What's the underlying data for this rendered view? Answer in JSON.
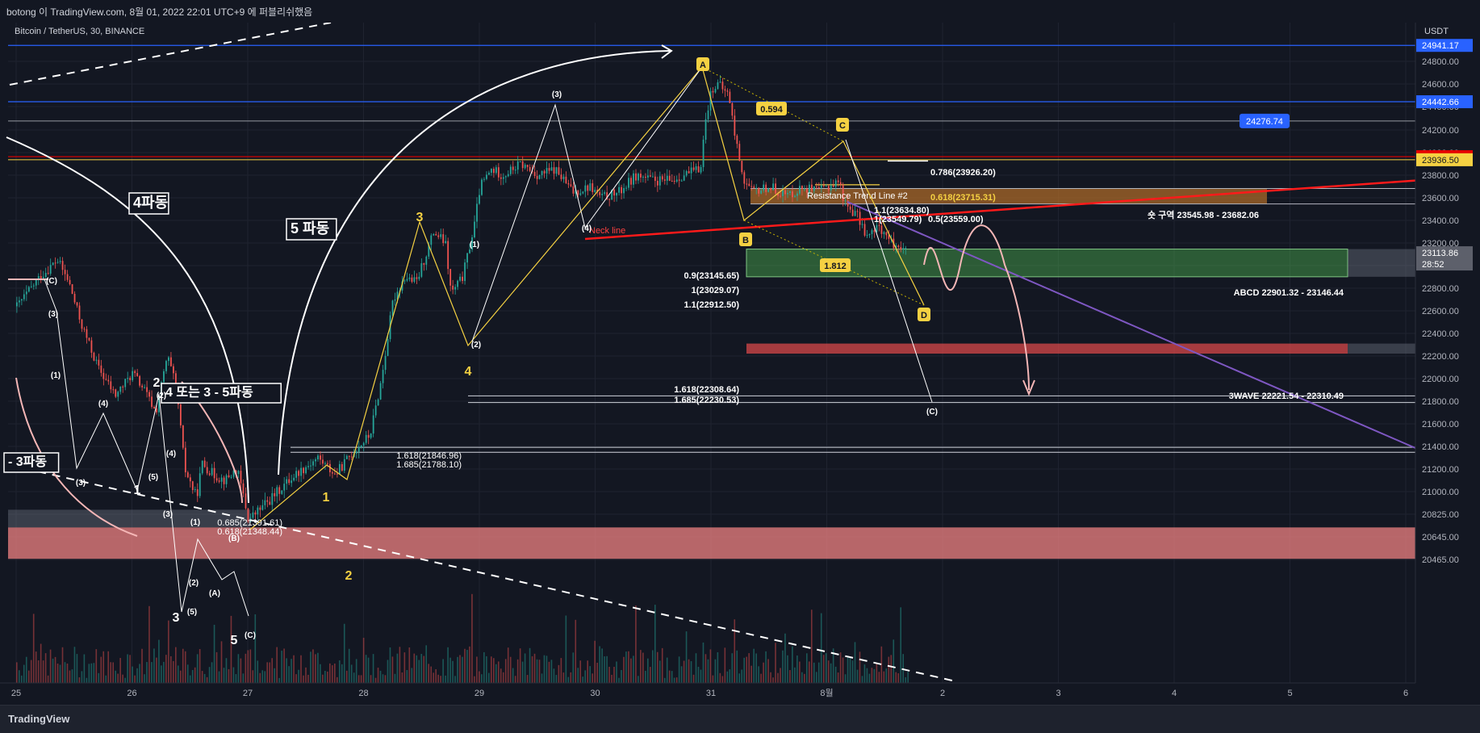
{
  "header": {
    "attribution": "botong 이 TradingView.com, 8월 01, 2022 22:01 UTC+9 에 퍼블리쉬했음"
  },
  "footer": {
    "logo_label": "TradingView"
  },
  "chart_data": {
    "type": "candlestick",
    "symbol_label": "Bitcoin / TetherUS, 30, BINANCE",
    "currency_label": "USDT",
    "ylim": [
      20300,
      25050
    ],
    "y_ticks": [
      "24800.00",
      "24600.00",
      "24400.00",
      "24200.00",
      "24000.00",
      "23800.00",
      "23600.00",
      "23400.00",
      "23200.00",
      "23000.00",
      "22800.00",
      "22600.00",
      "22400.00",
      "22200.00",
      "22000.00",
      "21800.00",
      "21600.00",
      "21400.00",
      "21200.00",
      "21000.00",
      "20825.00",
      "20645.00",
      "20465.00"
    ],
    "x_ticks": [
      "25",
      "26",
      "27",
      "28",
      "29",
      "30",
      "31",
      "8월",
      "2",
      "3",
      "4",
      "5",
      "6"
    ],
    "price_badges": [
      {
        "label": "24941.17",
        "color": "#2962ff"
      },
      {
        "label": "24442.66",
        "color": "#2962ff"
      },
      {
        "label": "23963.82",
        "color": "#e50000"
      },
      {
        "label": "23936.50",
        "color": "#f5d142"
      },
      {
        "label": "23113.86",
        "color": "#5d606b"
      },
      {
        "label": "28:52",
        "color": "#5d606b"
      }
    ],
    "price_tag": "24276.74",
    "close_path": [
      [
        25.0,
        22640
      ],
      [
        25.2,
        22900
      ],
      [
        25.35,
        23050
      ],
      [
        25.45,
        22850
      ],
      [
        25.55,
        22500
      ],
      [
        25.7,
        22100
      ],
      [
        25.85,
        21850
      ],
      [
        26.0,
        22050
      ],
      [
        26.1,
        21900
      ],
      [
        26.2,
        21700
      ],
      [
        26.3,
        22200
      ],
      [
        26.38,
        21900
      ],
      [
        26.45,
        21200
      ],
      [
        26.55,
        20950
      ],
      [
        26.6,
        21250
      ],
      [
        26.7,
        21150
      ],
      [
        26.8,
        21100
      ],
      [
        26.9,
        21200
      ],
      [
        27.0,
        20780
      ],
      [
        27.2,
        20950
      ],
      [
        27.4,
        21150
      ],
      [
        27.6,
        21300
      ],
      [
        27.75,
        21150
      ],
      [
        27.9,
        21350
      ],
      [
        28.05,
        21500
      ],
      [
        28.15,
        22000
      ],
      [
        28.25,
        22700
      ],
      [
        28.35,
        22900
      ],
      [
        28.45,
        22850
      ],
      [
        28.5,
        23000
      ],
      [
        28.6,
        23300
      ],
      [
        28.7,
        23200
      ],
      [
        28.75,
        22750
      ],
      [
        28.85,
        22900
      ],
      [
        28.95,
        23350
      ],
      [
        29.0,
        23700
      ],
      [
        29.1,
        23850
      ],
      [
        29.2,
        23800
      ],
      [
        29.35,
        23900
      ],
      [
        29.5,
        23800
      ],
      [
        29.65,
        23850
      ],
      [
        29.8,
        23650
      ],
      [
        29.95,
        23700
      ],
      [
        30.05,
        23600
      ],
      [
        30.2,
        23650
      ],
      [
        30.35,
        23800
      ],
      [
        30.5,
        23750
      ],
      [
        30.65,
        23750
      ],
      [
        30.75,
        23800
      ],
      [
        30.9,
        23850
      ],
      [
        30.95,
        24300
      ],
      [
        31.0,
        24560
      ],
      [
        31.05,
        24600
      ],
      [
        31.15,
        24500
      ],
      [
        31.2,
        24150
      ],
      [
        31.28,
        23750
      ],
      [
        31.35,
        23650
      ],
      [
        31.5,
        23700
      ],
      [
        31.65,
        23620
      ],
      [
        31.8,
        23700
      ],
      [
        31.9,
        23650
      ],
      [
        32.0,
        23700
      ],
      [
        32.1,
        23750
      ],
      [
        32.15,
        23550
      ],
      [
        32.25,
        23450
      ],
      [
        32.35,
        23250
      ],
      [
        32.45,
        23350
      ],
      [
        32.55,
        23200
      ],
      [
        32.62,
        23180
      ],
      [
        32.68,
        23114
      ]
    ],
    "volume_range": [
      25.0,
      32.7
    ],
    "labels": [
      {
        "text": "4파동"
      },
      {
        "text": "5 파동"
      },
      {
        "text": "4 또는 3 - 5파동"
      },
      {
        "text": "- 3파동"
      },
      {
        "text": "Neck line"
      },
      {
        "text": "Resistance Trend Line #2"
      }
    ],
    "fib_levels": [
      "0.786(23926.20)",
      "0.618(23715.31)",
      "1.1(23634.80)",
      "1(23549.79)",
      "0.5(23559.00)",
      "0.9(23145.65)",
      "1(23029.07)",
      "1.1(22912.50)",
      "1.618(22308.64)",
      "1.685(22230.53)",
      "1.618(21846.96)",
      "1.685(21788.10)",
      "0.685(21391.61)",
      "0.618(21348.44)"
    ],
    "zones": [
      {
        "label": "숏 구역 23545.98 - 23682.06"
      },
      {
        "label": "ABCD 22901.32 - 23146.44"
      },
      {
        "label": "3WAVE 22221.54 - 22310.49"
      }
    ],
    "harmonic_points": [
      "A",
      "B",
      "C",
      "D"
    ],
    "ratios": [
      "0.594",
      "1.812"
    ],
    "wave_numbers": [
      "1",
      "2",
      "3",
      "4",
      "5"
    ],
    "sub_waves": [
      "(1)",
      "(2)",
      "(3)",
      "(4)",
      "(5)",
      "(A)",
      "(B)",
      "(C)"
    ]
  }
}
